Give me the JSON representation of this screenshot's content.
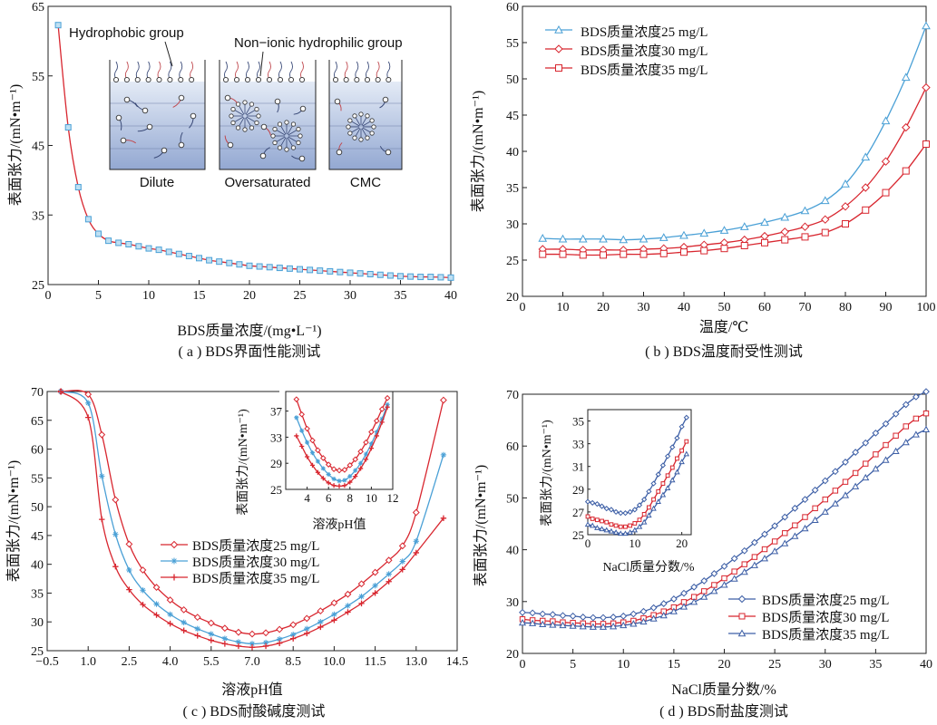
{
  "colors": {
    "red": "#d8262f",
    "blue": "#4aa0d6",
    "navy": "#3d5fa6"
  },
  "captions": {
    "a": "( a ) BDS界面性能测试",
    "b": "( b ) BDS温度耐受性测试",
    "c": "( c )  BDS耐酸碱度测试",
    "d": "( d ) BDS耐盐度测试"
  },
  "schematic": {
    "hydrophobic_label": "Hydrophobic group",
    "hydrophilic_label": "Non−ionic hydrophilic group",
    "panels": [
      "Dilute",
      "Oversaturated",
      "CMC"
    ],
    "icons": [
      "surfactant-molecule-icon",
      "micelle-icon"
    ]
  },
  "chart_data": [
    {
      "id": "a",
      "type": "line",
      "xlabel": "BDS质量浓度/(mg•L⁻¹)",
      "ylabel": "表面张力/(mN•m⁻¹)",
      "xlim": [
        0,
        40
      ],
      "ylim": [
        25,
        65
      ],
      "xticks": [
        0,
        5,
        10,
        15,
        20,
        25,
        30,
        35,
        40
      ],
      "yticks": [
        25,
        35,
        45,
        55,
        65
      ],
      "series": [
        {
          "x": [
            1,
            2,
            3,
            4,
            5,
            6,
            7,
            8,
            9,
            10,
            11,
            12,
            13,
            14,
            15,
            16,
            17,
            18,
            19,
            20,
            21,
            22,
            23,
            24,
            25,
            26,
            27,
            28,
            29,
            30,
            31,
            32,
            33,
            34,
            35,
            36,
            37,
            38,
            39,
            40
          ],
          "y": [
            62.3,
            47.6,
            39.0,
            34.4,
            32.3,
            31.3,
            31.0,
            30.8,
            30.5,
            30.2,
            30.0,
            29.7,
            29.4,
            29.1,
            28.8,
            28.5,
            28.3,
            28.1,
            27.9,
            27.7,
            27.6,
            27.5,
            27.4,
            27.3,
            27.2,
            27.1,
            27.0,
            26.9,
            26.8,
            26.7,
            26.6,
            26.5,
            26.4,
            26.3,
            26.2,
            26.15,
            26.1,
            26.1,
            26.05,
            26.0
          ]
        }
      ]
    },
    {
      "id": "b",
      "type": "line",
      "xlabel": "温度/℃",
      "ylabel": "表面张力/(mN•m⁻¹)",
      "xlim": [
        0,
        100
      ],
      "ylim": [
        20,
        60
      ],
      "xticks": [
        0,
        10,
        20,
        30,
        40,
        50,
        60,
        70,
        80,
        90,
        100
      ],
      "yticks": [
        20,
        25,
        30,
        35,
        40,
        45,
        50,
        55,
        60
      ],
      "legend_position": "top-left",
      "x": [
        5,
        10,
        15,
        20,
        25,
        30,
        35,
        40,
        45,
        50,
        55,
        60,
        65,
        70,
        75,
        80,
        85,
        90,
        95,
        100
      ],
      "series": [
        {
          "name": "BDS质量浓度25 mg/L",
          "values": [
            28.0,
            27.9,
            27.9,
            27.9,
            27.8,
            27.9,
            28.1,
            28.4,
            28.7,
            29.1,
            29.6,
            30.2,
            30.9,
            31.8,
            33.2,
            35.5,
            39.2,
            44.2,
            50.2,
            57.3
          ]
        },
        {
          "name": "BDS质量浓度30 mg/L",
          "values": [
            26.5,
            26.5,
            26.4,
            26.4,
            26.4,
            26.5,
            26.6,
            26.8,
            27.1,
            27.4,
            27.8,
            28.3,
            28.9,
            29.6,
            30.6,
            32.4,
            35.0,
            38.6,
            43.3,
            48.8
          ]
        },
        {
          "name": "BDS质量浓度35 mg/L",
          "values": [
            25.8,
            25.8,
            25.7,
            25.7,
            25.8,
            25.8,
            25.9,
            26.1,
            26.3,
            26.6,
            27.0,
            27.4,
            27.8,
            28.2,
            28.8,
            30.0,
            31.9,
            34.3,
            37.3,
            41.0
          ]
        }
      ]
    },
    {
      "id": "c",
      "type": "line",
      "xlabel": "溶液pH值",
      "ylabel": "表面张力/(mN•m⁻¹)",
      "xlim": [
        -0.5,
        14.5
      ],
      "ylim": [
        25,
        70
      ],
      "xticks": [
        -0.5,
        1.0,
        2.5,
        4.0,
        5.5,
        7.0,
        8.5,
        10.0,
        11.5,
        13.0,
        14.5
      ],
      "xticklabels": [
        "−0.5",
        "1.0",
        "2.5",
        "4.0",
        "5.5",
        "7.0",
        "8.5",
        "10.0",
        "11.5",
        "13.0",
        "14.5"
      ],
      "yticks": [
        25,
        30,
        35,
        40,
        45,
        50,
        55,
        60,
        65,
        70
      ],
      "legend_position": "lower-left",
      "x": [
        0,
        1,
        1.5,
        2,
        2.5,
        3,
        3.5,
        4,
        4.5,
        5,
        5.5,
        6,
        6.5,
        7,
        7.5,
        8,
        8.5,
        9,
        9.5,
        10,
        10.5,
        11,
        11.5,
        12,
        12.5,
        13,
        14
      ],
      "series": [
        {
          "name": "BDS质量浓度25 mg/L",
          "values": [
            70.0,
            69.5,
            62.5,
            51.2,
            43.5,
            39.0,
            36.0,
            33.8,
            32.1,
            30.8,
            29.8,
            28.9,
            28.2,
            27.9,
            28.1,
            28.7,
            29.5,
            30.6,
            31.9,
            33.3,
            34.8,
            36.6,
            38.6,
            40.7,
            43.2,
            49.0,
            68.5
          ]
        },
        {
          "name": "BDS质量浓度30 mg/L",
          "values": [
            70.0,
            68.0,
            55.3,
            45.2,
            39.0,
            35.5,
            33.1,
            31.3,
            29.9,
            28.8,
            27.9,
            27.1,
            26.5,
            26.2,
            26.4,
            27.0,
            27.8,
            28.8,
            30.0,
            31.3,
            32.8,
            34.4,
            36.3,
            38.3,
            40.5,
            44.0,
            59.0
          ]
        },
        {
          "name": "BDS质量浓度35 mg/L",
          "values": [
            70.0,
            65.5,
            47.8,
            39.6,
            35.6,
            33.0,
            31.2,
            29.7,
            28.5,
            27.6,
            26.8,
            26.2,
            25.8,
            25.6,
            25.8,
            26.3,
            27.1,
            28.0,
            29.1,
            30.3,
            31.7,
            33.2,
            35.0,
            37.0,
            39.1,
            42.0,
            48.0
          ]
        }
      ],
      "inset": {
        "xlabel": "溶液pH值",
        "ylabel": "表面张力/(mN•m⁻¹)",
        "xlim": [
          2,
          12
        ],
        "ylim": [
          25,
          40
        ],
        "xticks": [
          4,
          6,
          8,
          10,
          12
        ],
        "yticks": [
          25,
          29,
          33,
          37
        ],
        "x": [
          3,
          3.5,
          4,
          4.5,
          5,
          5.5,
          6,
          6.5,
          7,
          7.5,
          8,
          8.5,
          9,
          9.5,
          10,
          10.5,
          11,
          11.5
        ],
        "series": [
          {
            "name": "BDS质量浓度25 mg/L",
            "values": [
              38.8,
              36.5,
              34.3,
              32.5,
              31.0,
              29.8,
              28.8,
              28.1,
              27.9,
              28.0,
              28.7,
              29.6,
              30.8,
              32.2,
              33.8,
              35.5,
              37.3,
              39.0
            ]
          },
          {
            "name": "BDS质量浓度30 mg/L",
            "values": [
              36.0,
              34.0,
              32.2,
              30.6,
              29.3,
              28.2,
              27.3,
              26.6,
              26.3,
              26.4,
              27.0,
              27.9,
              29.0,
              30.4,
              32.0,
              33.8,
              35.8,
              38.0
            ]
          },
          {
            "name": "BDS质量浓度35 mg/L",
            "values": [
              33.2,
              31.6,
              30.0,
              28.7,
              27.6,
              26.7,
              26.0,
              25.6,
              25.5,
              25.6,
              26.1,
              27.0,
              28.2,
              29.6,
              31.3,
              33.2,
              35.3,
              37.6
            ]
          }
        ]
      }
    },
    {
      "id": "d",
      "type": "line",
      "xlabel": "NaCl质量分数/%",
      "ylabel": "表面张力/(mN•m⁻¹)",
      "xlim": [
        0,
        40
      ],
      "ylim": [
        20,
        70
      ],
      "xticks": [
        0,
        5,
        10,
        15,
        20,
        25,
        30,
        35,
        40
      ],
      "yticks": [
        20,
        30,
        40,
        50,
        60,
        70
      ],
      "legend_position": "lower-right",
      "x": [
        0,
        1,
        2,
        3,
        4,
        5,
        6,
        7,
        8,
        9,
        10,
        11,
        12,
        13,
        14,
        15,
        16,
        17,
        18,
        19,
        20,
        21,
        22,
        23,
        24,
        25,
        26,
        27,
        28,
        29,
        30,
        31,
        32,
        33,
        34,
        35,
        36,
        37,
        38,
        39,
        40
      ],
      "series": [
        {
          "name": "BDS质量浓度25 mg/L",
          "values": [
            27.9,
            27.8,
            27.6,
            27.5,
            27.3,
            27.2,
            27.0,
            26.9,
            26.9,
            27.0,
            27.2,
            27.6,
            28.1,
            28.8,
            29.6,
            30.5,
            31.6,
            32.8,
            34.0,
            35.4,
            36.8,
            38.3,
            39.8,
            41.4,
            43.0,
            44.6,
            46.3,
            48.0,
            49.7,
            51.5,
            53.3,
            55.1,
            56.9,
            58.8,
            60.6,
            62.5,
            64.3,
            66.2,
            68.0,
            69.5,
            70.5
          ]
        },
        {
          "name": "BDS质量浓度30 mg/L",
          "values": [
            26.6,
            26.4,
            26.3,
            26.2,
            26.0,
            25.9,
            25.8,
            25.7,
            25.7,
            25.8,
            26.0,
            26.3,
            26.8,
            27.4,
            28.1,
            28.9,
            29.9,
            30.9,
            32.0,
            33.2,
            34.5,
            35.8,
            37.2,
            38.6,
            40.1,
            41.6,
            43.2,
            44.7,
            46.3,
            48.0,
            49.7,
            51.4,
            53.1,
            54.8,
            56.6,
            58.4,
            60.2,
            62.0,
            63.8,
            65.3,
            66.3
          ]
        },
        {
          "name": "BDS质量浓度35 mg/L",
          "values": [
            25.9,
            25.8,
            25.6,
            25.5,
            25.4,
            25.3,
            25.2,
            25.1,
            25.1,
            25.2,
            25.4,
            25.7,
            26.1,
            26.7,
            27.3,
            28.1,
            29.0,
            29.9,
            30.9,
            32.0,
            33.2,
            34.4,
            35.7,
            37.0,
            38.3,
            39.7,
            41.2,
            42.6,
            44.1,
            45.7,
            47.3,
            48.9,
            50.5,
            52.2,
            53.9,
            55.6,
            57.3,
            59.0,
            60.7,
            62.2,
            63.2
          ]
        }
      ],
      "inset": {
        "xlabel": "NaCl质量分数/%",
        "ylabel": "表面张力/(mN•m⁻¹)",
        "xlim": [
          0,
          22
        ],
        "ylim": [
          25,
          36
        ],
        "xticks": [
          0,
          10,
          20
        ],
        "yticks": [
          25,
          27,
          29,
          31,
          33,
          35
        ],
        "x": [
          0,
          1,
          2,
          3,
          4,
          5,
          6,
          7,
          8,
          9,
          10,
          11,
          12,
          13,
          14,
          15,
          16,
          17,
          18,
          19,
          20,
          21
        ],
        "series": [
          {
            "name": "BDS质量浓度25 mg/L",
            "values": [
              27.9,
              27.8,
              27.7,
              27.5,
              27.3,
              27.2,
              27.0,
              26.9,
              26.9,
              27.0,
              27.2,
              27.6,
              28.1,
              28.8,
              29.5,
              30.3,
              31.1,
              31.9,
              32.7,
              33.5,
              34.5,
              35.3
            ]
          },
          {
            "name": "BDS质量浓度30 mg/L",
            "values": [
              26.6,
              26.4,
              26.3,
              26.2,
              26.1,
              25.9,
              25.8,
              25.7,
              25.7,
              25.8,
              26.0,
              26.3,
              26.8,
              27.4,
              28.1,
              28.8,
              29.5,
              30.2,
              30.9,
              31.7,
              32.4,
              33.2
            ]
          },
          {
            "name": "BDS质量浓度35 mg/L",
            "values": [
              25.9,
              25.8,
              25.6,
              25.5,
              25.4,
              25.3,
              25.2,
              25.1,
              25.1,
              25.2,
              25.4,
              25.7,
              26.1,
              26.7,
              27.3,
              27.9,
              28.5,
              29.1,
              29.8,
              30.5,
              31.4,
              32.1
            ]
          }
        ]
      }
    }
  ]
}
